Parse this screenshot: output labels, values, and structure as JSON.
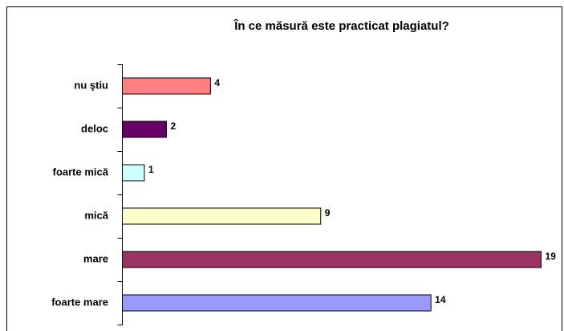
{
  "chart_data": {
    "type": "bar",
    "orientation": "horizontal",
    "title": "În ce măsură este practicat plagiatul?",
    "categories": [
      "nu ştiu",
      "deloc",
      "foarte mică",
      "mică",
      "mare",
      "foarte mare"
    ],
    "values": [
      4,
      2,
      1,
      9,
      19,
      14
    ],
    "colors": [
      "#ff8080",
      "#660066",
      "#ccffff",
      "#ffffcc",
      "#993366",
      "#9999ff"
    ],
    "xlim": [
      0,
      20
    ]
  }
}
